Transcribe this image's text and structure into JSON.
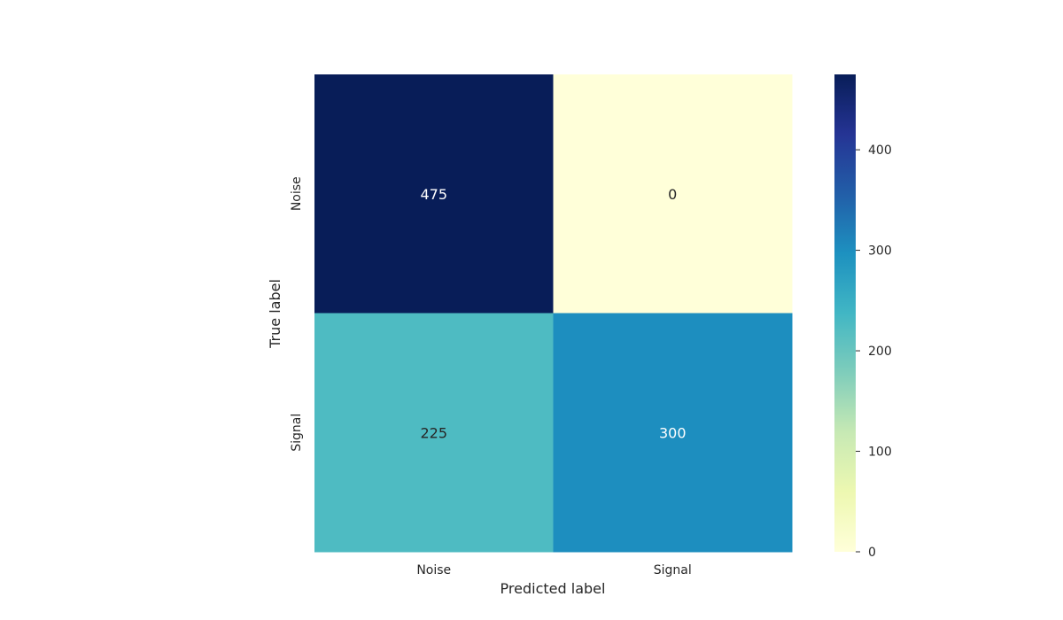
{
  "chart_data": {
    "type": "heatmap",
    "x_categories": [
      "Noise",
      "Signal"
    ],
    "y_categories": [
      "Noise",
      "Signal"
    ],
    "values": [
      [
        475,
        0
      ],
      [
        225,
        300
      ]
    ],
    "xlabel": "Predicted label",
    "ylabel": "True label",
    "colormap": "YlGnBu",
    "colorbar": {
      "vmin": 0,
      "vmax": 475,
      "ticks": [
        0,
        100,
        200,
        300,
        400
      ]
    }
  }
}
